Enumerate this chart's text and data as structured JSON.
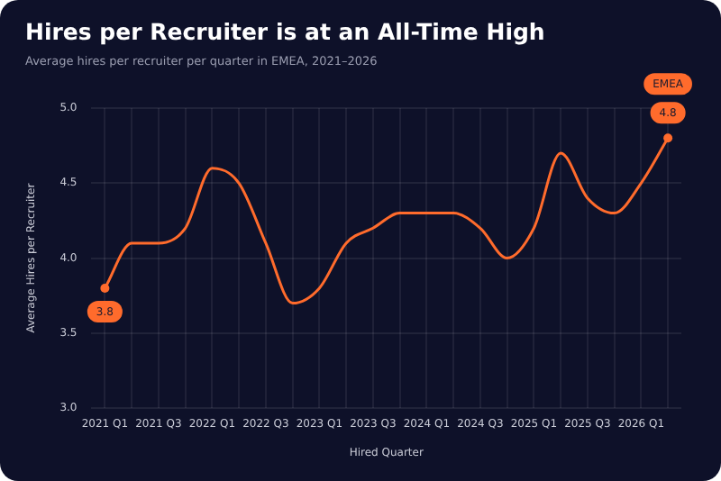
{
  "chart_data": {
    "type": "line",
    "title": "Hires per Recruiter is at an All-Time High",
    "subtitle": "Average hires per recruiter per quarter in EMEA, 2021–2026",
    "xlabel": "Hired Quarter",
    "ylabel": "Average Hires per Recruiter",
    "categories": [
      "2021 Q1",
      null,
      "2021 Q3",
      null,
      "2022 Q1",
      null,
      "2022 Q3",
      null,
      "2023 Q1",
      null,
      "2023 Q3",
      null,
      "2024 Q1",
      null,
      "2024 Q3",
      null,
      "2025 Q1",
      null,
      "2025 Q3",
      null,
      "2026 Q1",
      null
    ],
    "series": [
      {
        "name": "EMEA",
        "color": "#ff6b2c",
        "values": [
          3.8,
          4.1,
          4.1,
          4.2,
          4.6,
          4.5,
          4.1,
          3.7,
          3.8,
          4.1,
          4.2,
          4.3,
          4.3,
          4.3,
          4.2,
          4.0,
          4.2,
          4.7,
          4.4,
          4.3,
          4.5,
          4.8
        ],
        "value_labels": [
          "3.8",
          null,
          null,
          null,
          null,
          null,
          null,
          null,
          null,
          null,
          null,
          null,
          null,
          null,
          null,
          null,
          null,
          null,
          null,
          null,
          null,
          "4.8"
        ]
      }
    ],
    "ylim": [
      3.0,
      5.0
    ],
    "yticks": [
      {
        "value": 3.0,
        "label": "3.0"
      },
      {
        "value": 3.5,
        "label": "3.5"
      },
      {
        "value": 4.0,
        "label": "4.0"
      },
      {
        "value": 4.5,
        "label": "4.5"
      },
      {
        "value": 5.0,
        "label": "5.0"
      }
    ],
    "grid": true
  }
}
